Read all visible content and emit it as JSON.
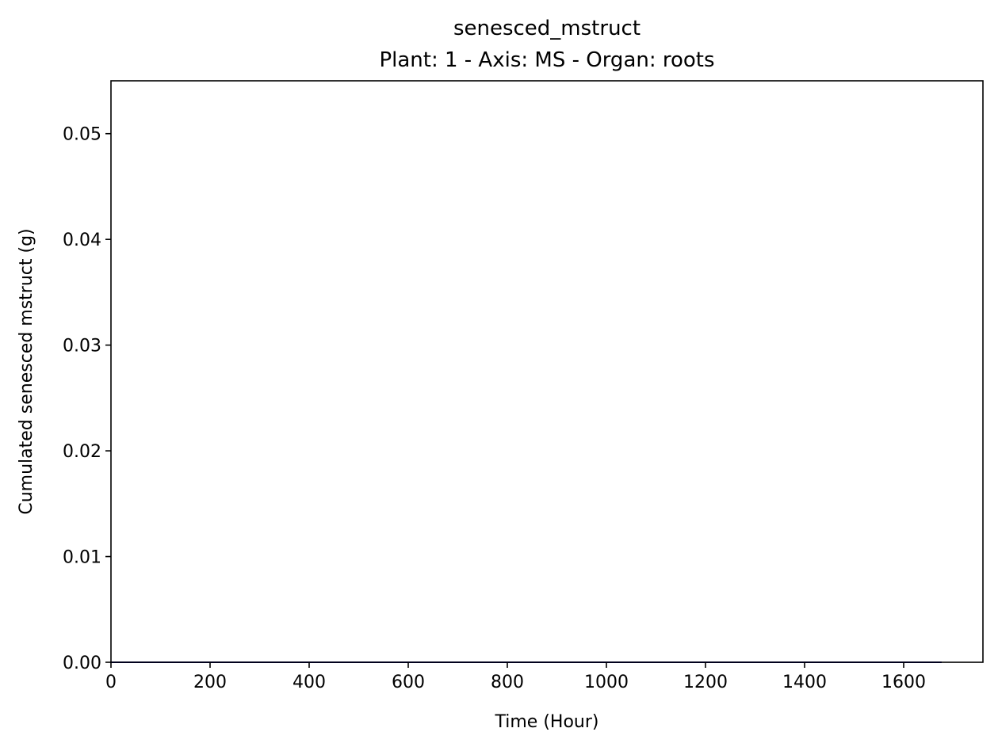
{
  "chart_data": {
    "type": "line",
    "title": "senesced_mstruct",
    "subtitle": "Plant: 1 - Axis: MS - Organ: roots",
    "xlabel": "Time (Hour)",
    "ylabel": "Cumulated senesced mstruct (g)",
    "xlim": [
      0,
      1760
    ],
    "ylim": [
      0,
      0.055
    ],
    "xticks": [
      {
        "value": 0,
        "label": "0"
      },
      {
        "value": 200,
        "label": "200"
      },
      {
        "value": 400,
        "label": "400"
      },
      {
        "value": 600,
        "label": "600"
      },
      {
        "value": 800,
        "label": "800"
      },
      {
        "value": 1000,
        "label": "1000"
      },
      {
        "value": 1200,
        "label": "1200"
      },
      {
        "value": 1400,
        "label": "1400"
      },
      {
        "value": 1600,
        "label": "1600"
      }
    ],
    "yticks": [
      {
        "value": 0,
        "label": "0.00"
      },
      {
        "value": 0.01,
        "label": "0.01"
      },
      {
        "value": 0.02,
        "label": "0.02"
      },
      {
        "value": 0.03,
        "label": "0.03"
      },
      {
        "value": 0.04,
        "label": "0.04"
      },
      {
        "value": 0.05,
        "label": "0.05"
      }
    ],
    "grid": false,
    "legend": "none",
    "series": [
      {
        "x": [
          0,
          1675
        ],
        "y": [
          0,
          0
        ],
        "color": "#00008b"
      }
    ]
  }
}
